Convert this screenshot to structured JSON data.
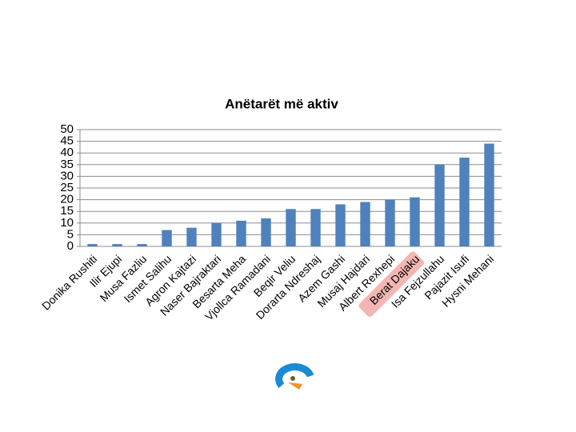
{
  "chart_data": {
    "type": "bar",
    "title": "Anëtarët më aktiv",
    "categories": [
      "Donika Rushiti",
      "Ilir Ejupi",
      "Musa Fazliu",
      "Ismet Salihu",
      "Agron Kajtazi",
      "Naser Bajraktari",
      "Besarta Meha",
      "Vjollca Ramadani",
      "Beqir Veliu",
      "Dorarta Ndreshaj",
      "Azem Gashi",
      "Musaj Hajdari",
      "Albert Rexhepi",
      "Berat Dajaku",
      "Isa Fejzullahu",
      "Pajazit Isufi",
      "Hysni Mehani"
    ],
    "values": [
      1,
      1,
      1,
      7,
      8,
      10,
      11,
      12,
      16,
      16,
      18,
      19,
      20,
      21,
      35,
      38,
      44
    ],
    "color": "#4f81bd",
    "ylim": [
      0,
      50
    ],
    "yticks": [
      0,
      5,
      10,
      15,
      20,
      25,
      30,
      35,
      40,
      45,
      50
    ],
    "grid": true,
    "highlight": {
      "category": 13,
      "color": "#f4b6b4"
    }
  }
}
